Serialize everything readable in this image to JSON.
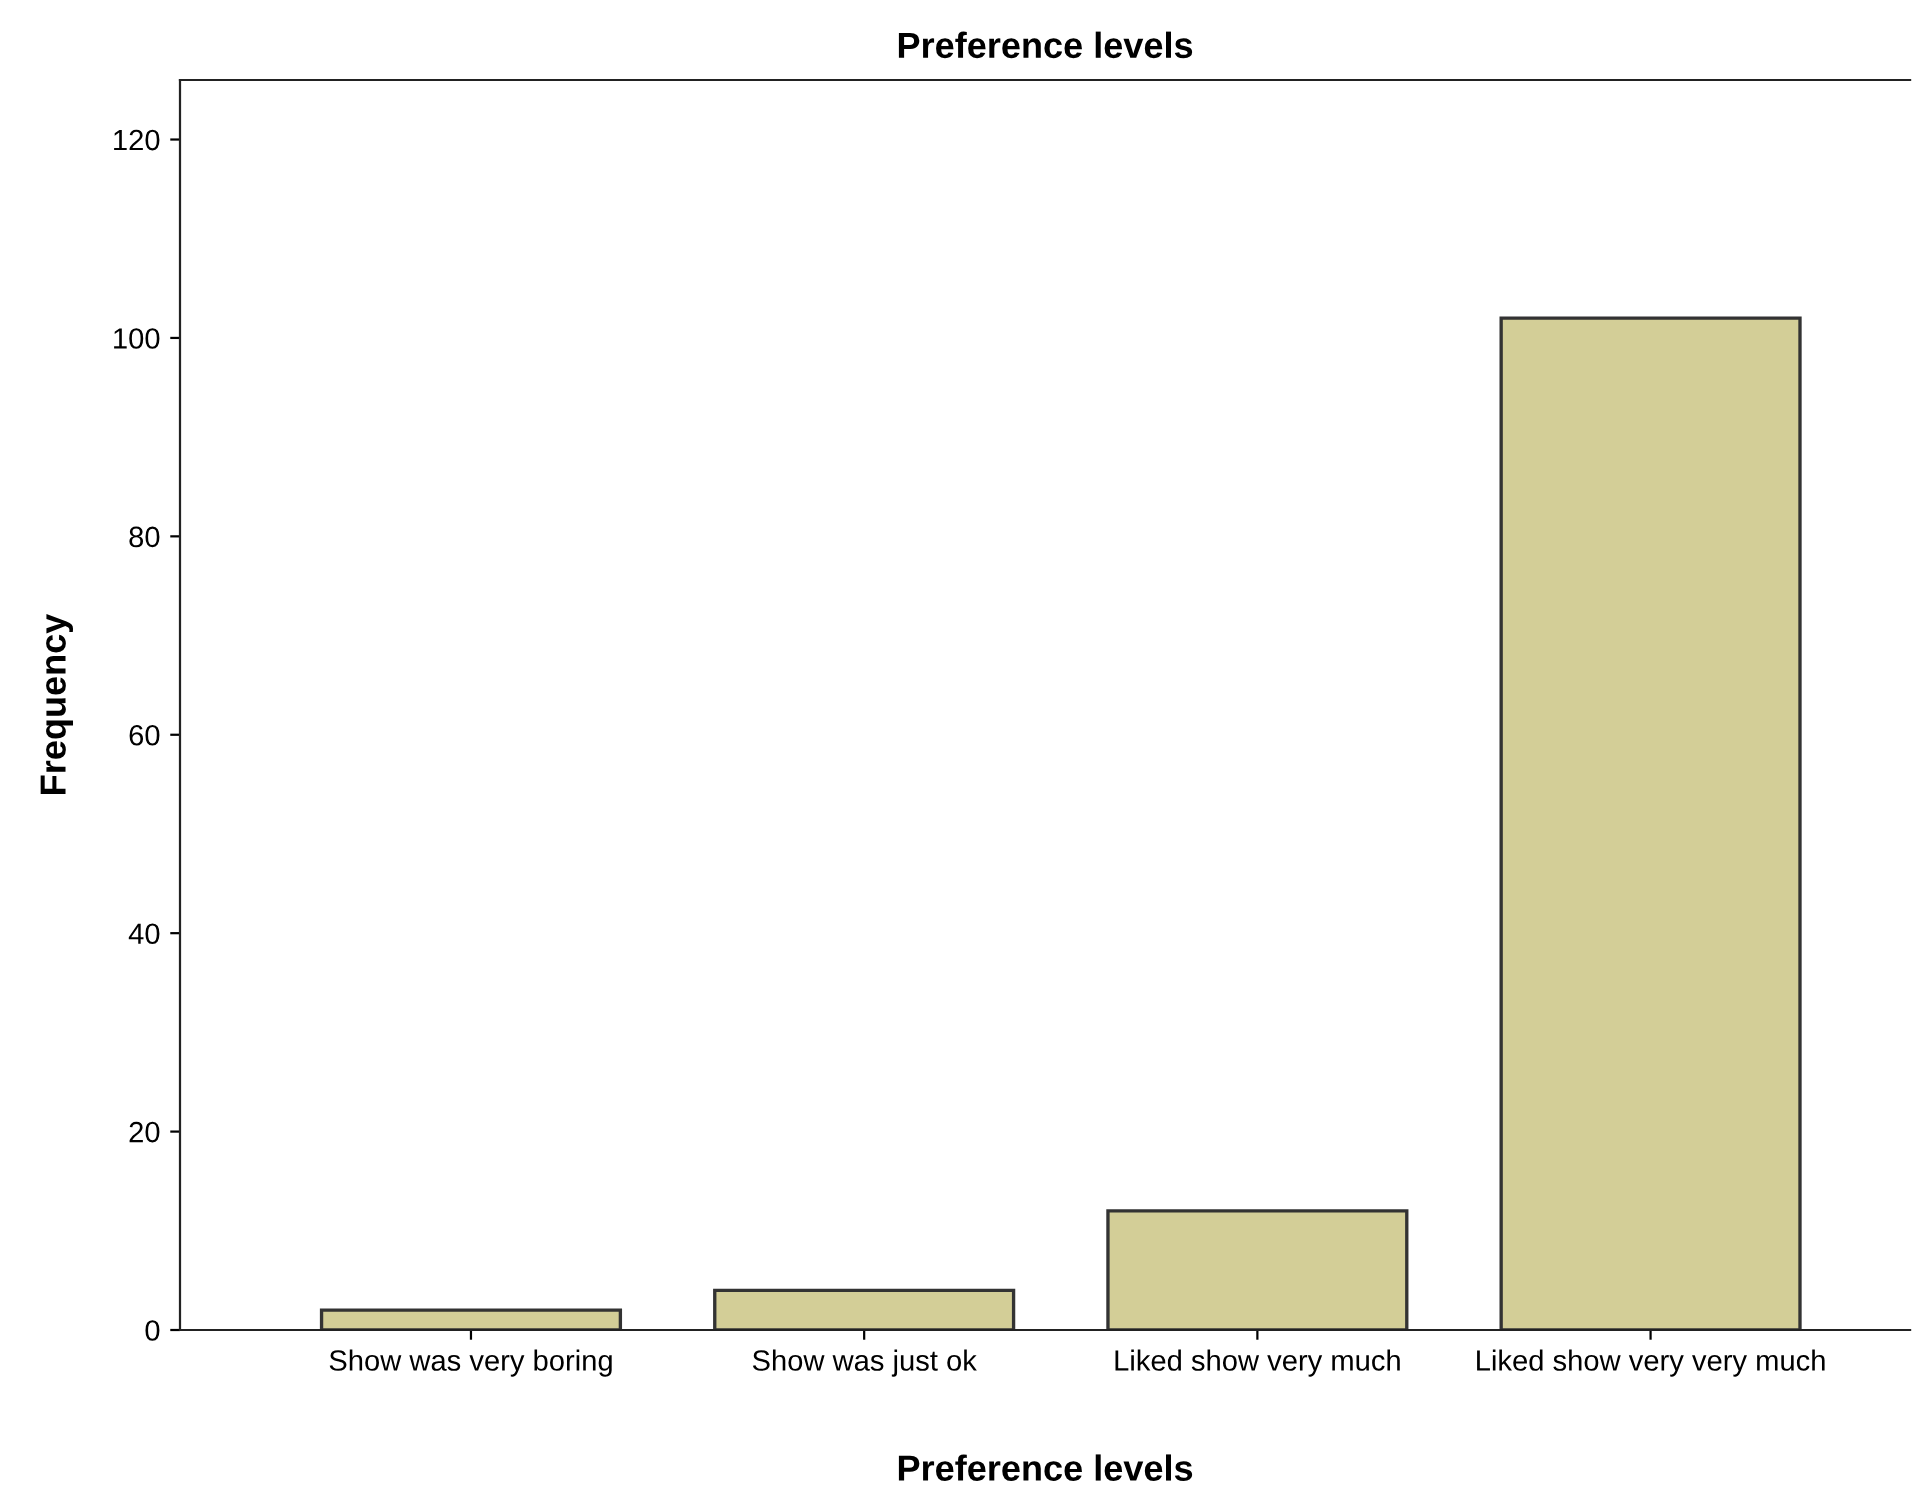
{
  "chart_data": {
    "type": "bar",
    "title": "Preference levels",
    "xlabel": "Preference levels",
    "ylabel": "Frequency",
    "categories": [
      "Show was very boring",
      "Show was just ok",
      "Liked show very much",
      "Liked show very very much"
    ],
    "values": [
      2,
      4,
      12,
      102
    ],
    "color": "#d3ce97",
    "ylim": [
      0,
      126
    ],
    "yticks": [
      0,
      20,
      40,
      60,
      80,
      100,
      120
    ],
    "grid": false
  }
}
